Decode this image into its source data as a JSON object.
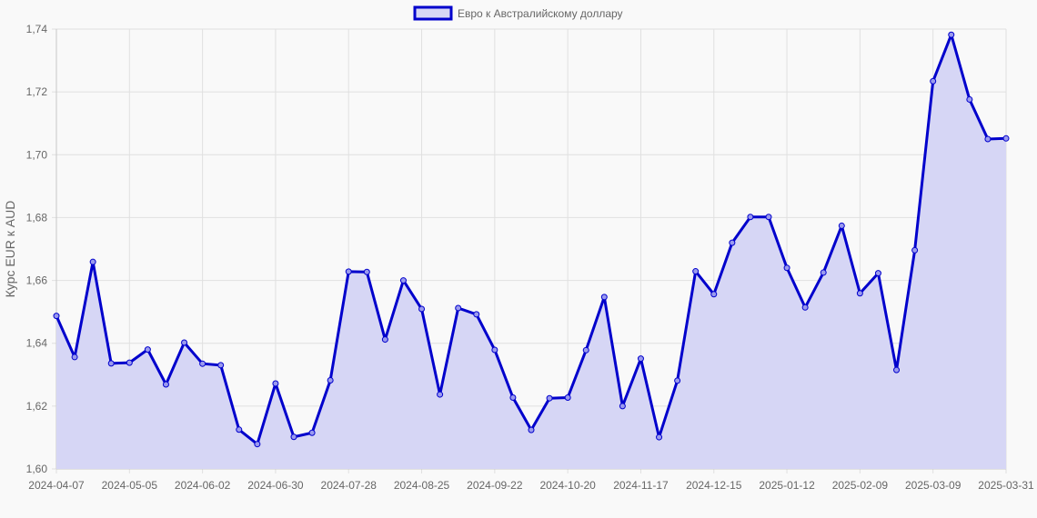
{
  "chart_data": {
    "type": "area",
    "title": "",
    "xlabel": "",
    "ylabel": "Курс EUR к AUD",
    "ylim": [
      1.6,
      1.74
    ],
    "y_ticks": [
      "1,60",
      "1,62",
      "1,64",
      "1,66",
      "1,68",
      "1,70",
      "1,72",
      "1,74"
    ],
    "y_tick_values": [
      1.6,
      1.62,
      1.64,
      1.66,
      1.68,
      1.7,
      1.72,
      1.74
    ],
    "x_tick_labels": [
      "2024-04-07",
      "2024-05-05",
      "2024-06-02",
      "2024-06-30",
      "2024-07-28",
      "2024-08-25",
      "2024-09-22",
      "2024-10-20",
      "2024-11-17",
      "2024-12-15",
      "2025-01-12",
      "2025-02-09",
      "2025-03-09",
      "2025-03-31"
    ],
    "x_tick_indices": [
      0,
      4,
      8,
      12,
      16,
      20,
      24,
      28,
      32,
      36,
      40,
      44,
      48,
      52
    ],
    "grid": true,
    "legend_position": "top-center",
    "series": [
      {
        "name": "Евро к Австралийскому доллару",
        "line_color": "#0000cc",
        "fill_color": "#d6d6f5",
        "values": [
          1.6487,
          1.6356,
          1.6659,
          1.6336,
          1.6338,
          1.638,
          1.6269,
          1.6402,
          1.6335,
          1.633,
          1.6125,
          1.6079,
          1.6272,
          1.6102,
          1.6115,
          1.6282,
          1.6628,
          1.6627,
          1.6412,
          1.66,
          1.6509,
          1.6237,
          1.6512,
          1.6492,
          1.6379,
          1.6227,
          1.6124,
          1.6225,
          1.6227,
          1.6378,
          1.6547,
          1.62,
          1.6351,
          1.6101,
          1.6281,
          1.6629,
          1.6556,
          1.672,
          1.6802,
          1.6802,
          1.664,
          1.6514,
          1.6625,
          1.6774,
          1.6559,
          1.6623,
          1.6315,
          1.6696,
          1.7234,
          1.7382,
          1.7176,
          1.705,
          1.7052
        ]
      }
    ]
  }
}
